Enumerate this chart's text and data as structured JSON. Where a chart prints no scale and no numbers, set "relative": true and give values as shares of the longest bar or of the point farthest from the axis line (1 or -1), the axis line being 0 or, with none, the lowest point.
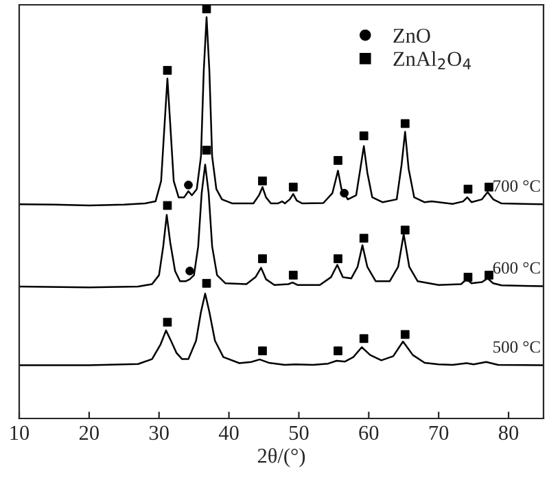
{
  "chart_data": {
    "type": "line",
    "relative": true,
    "xlabel": "2θ/(°)",
    "xlim": [
      10,
      85
    ],
    "xticks": [
      10,
      20,
      30,
      40,
      50,
      60,
      70,
      80
    ],
    "grid": false,
    "legend": "top right",
    "tick_labels": "x",
    "series": [
      {
        "name": "700 °C",
        "color": "#000000",
        "x": [
          10,
          15,
          20,
          25,
          28,
          29.5,
          30.3,
          30.8,
          31.2,
          31.6,
          32.1,
          32.8,
          33.6,
          34.2,
          34.7,
          35.4,
          36,
          36.4,
          36.8,
          37.2,
          37.6,
          38.2,
          39,
          40.5,
          43.5,
          44.3,
          44.8,
          45.3,
          46,
          47,
          47.6,
          48,
          48.7,
          49.2,
          49.7,
          50.5,
          53.5,
          54.8,
          55.6,
          56.1,
          56.5,
          57,
          58.2,
          58.8,
          59.3,
          59.8,
          60.5,
          62,
          64,
          64.7,
          65.2,
          65.7,
          66.5,
          68,
          69,
          72,
          73.5,
          74.1,
          74.7,
          76.2,
          77,
          77.8,
          79,
          85
        ],
        "values": [
          0.523,
          0.522,
          0.52,
          0.522,
          0.525,
          0.53,
          0.58,
          0.72,
          0.83,
          0.72,
          0.58,
          0.54,
          0.54,
          0.555,
          0.545,
          0.56,
          0.64,
          0.85,
          0.98,
          0.85,
          0.64,
          0.56,
          0.535,
          0.525,
          0.525,
          0.545,
          0.565,
          0.54,
          0.525,
          0.525,
          0.53,
          0.525,
          0.535,
          0.548,
          0.532,
          0.525,
          0.526,
          0.55,
          0.605,
          0.56,
          0.55,
          0.535,
          0.545,
          0.61,
          0.665,
          0.6,
          0.54,
          0.528,
          0.535,
          0.62,
          0.7,
          0.61,
          0.54,
          0.528,
          0.53,
          0.524,
          0.53,
          0.54,
          0.528,
          0.535,
          0.553,
          0.535,
          0.525,
          0.523
        ]
      },
      {
        "name": "600 °C",
        "color": "#000000",
        "x": [
          10,
          20,
          27,
          29,
          30,
          30.6,
          31.1,
          31.6,
          32.3,
          33,
          33.8,
          34.4,
          35,
          35.6,
          36.1,
          36.6,
          37.1,
          37.6,
          38.3,
          39.5,
          42.5,
          43.8,
          44.6,
          45.3,
          46.5,
          48.5,
          49.1,
          49.8,
          53,
          54.6,
          55.5,
          56.3,
          57.5,
          58.4,
          59.1,
          59.8,
          61,
          63,
          64.2,
          65,
          65.8,
          67,
          70,
          73.2,
          74,
          74.7,
          76.2,
          77,
          77.8,
          79,
          85
        ],
        "values": [
          0.322,
          0.32,
          0.322,
          0.328,
          0.35,
          0.42,
          0.497,
          0.43,
          0.36,
          0.335,
          0.335,
          0.34,
          0.35,
          0.42,
          0.55,
          0.62,
          0.55,
          0.42,
          0.35,
          0.33,
          0.328,
          0.345,
          0.368,
          0.34,
          0.326,
          0.328,
          0.332,
          0.326,
          0.326,
          0.345,
          0.375,
          0.345,
          0.342,
          0.37,
          0.423,
          0.37,
          0.335,
          0.335,
          0.37,
          0.45,
          0.37,
          0.335,
          0.326,
          0.328,
          0.34,
          0.33,
          0.333,
          0.342,
          0.33,
          0.325,
          0.323
        ]
      },
      {
        "name": "500 °C",
        "color": "#000000",
        "x": [
          10,
          20,
          27,
          29,
          30.2,
          31,
          31.7,
          32.5,
          33.3,
          34.2,
          35.3,
          36,
          36.6,
          37.2,
          38,
          39.2,
          41.5,
          43.2,
          44.4,
          45.7,
          48,
          49.5,
          52,
          54.2,
          55.4,
          56.6,
          57.8,
          59,
          60.2,
          61.8,
          63.5,
          64.9,
          66.3,
          68,
          70,
          72,
          74,
          75,
          76.8,
          78.5,
          85
        ],
        "values": [
          0.13,
          0.13,
          0.133,
          0.145,
          0.18,
          0.215,
          0.19,
          0.16,
          0.145,
          0.145,
          0.19,
          0.26,
          0.305,
          0.26,
          0.19,
          0.15,
          0.135,
          0.138,
          0.144,
          0.136,
          0.131,
          0.132,
          0.131,
          0.134,
          0.141,
          0.139,
          0.15,
          0.174,
          0.155,
          0.142,
          0.152,
          0.188,
          0.155,
          0.136,
          0.132,
          0.131,
          0.135,
          0.132,
          0.138,
          0.131,
          0.13
        ]
      },
      {
        "name": "ZnO",
        "type": "scatter",
        "marker": "circle",
        "color": "#000000",
        "x": [
          34.2,
          56.5,
          34.4
        ],
        "values": [
          0.57,
          0.55,
          0.36
        ]
      },
      {
        "name": "ZnAl$_{2}$O$_{4}$",
        "type": "scatter",
        "marker": "square",
        "color": "#000000",
        "x": [
          31.2,
          36.8,
          44.8,
          49.2,
          55.6,
          59.3,
          65.2,
          74.2,
          77.2,
          31.2,
          36.8,
          44.8,
          49.2,
          55.6,
          59.3,
          65.2,
          74.2,
          77.2,
          31.2,
          36.8,
          44.8,
          55.6,
          59.3,
          65.2
        ],
        "values": [
          0.85,
          1.0,
          0.58,
          0.565,
          0.63,
          0.69,
          0.72,
          0.56,
          0.565,
          0.52,
          0.655,
          0.39,
          0.35,
          0.39,
          0.44,
          0.46,
          0.345,
          0.35,
          0.235,
          0.33,
          0.165,
          0.165,
          0.195,
          0.205
        ]
      }
    ]
  }
}
